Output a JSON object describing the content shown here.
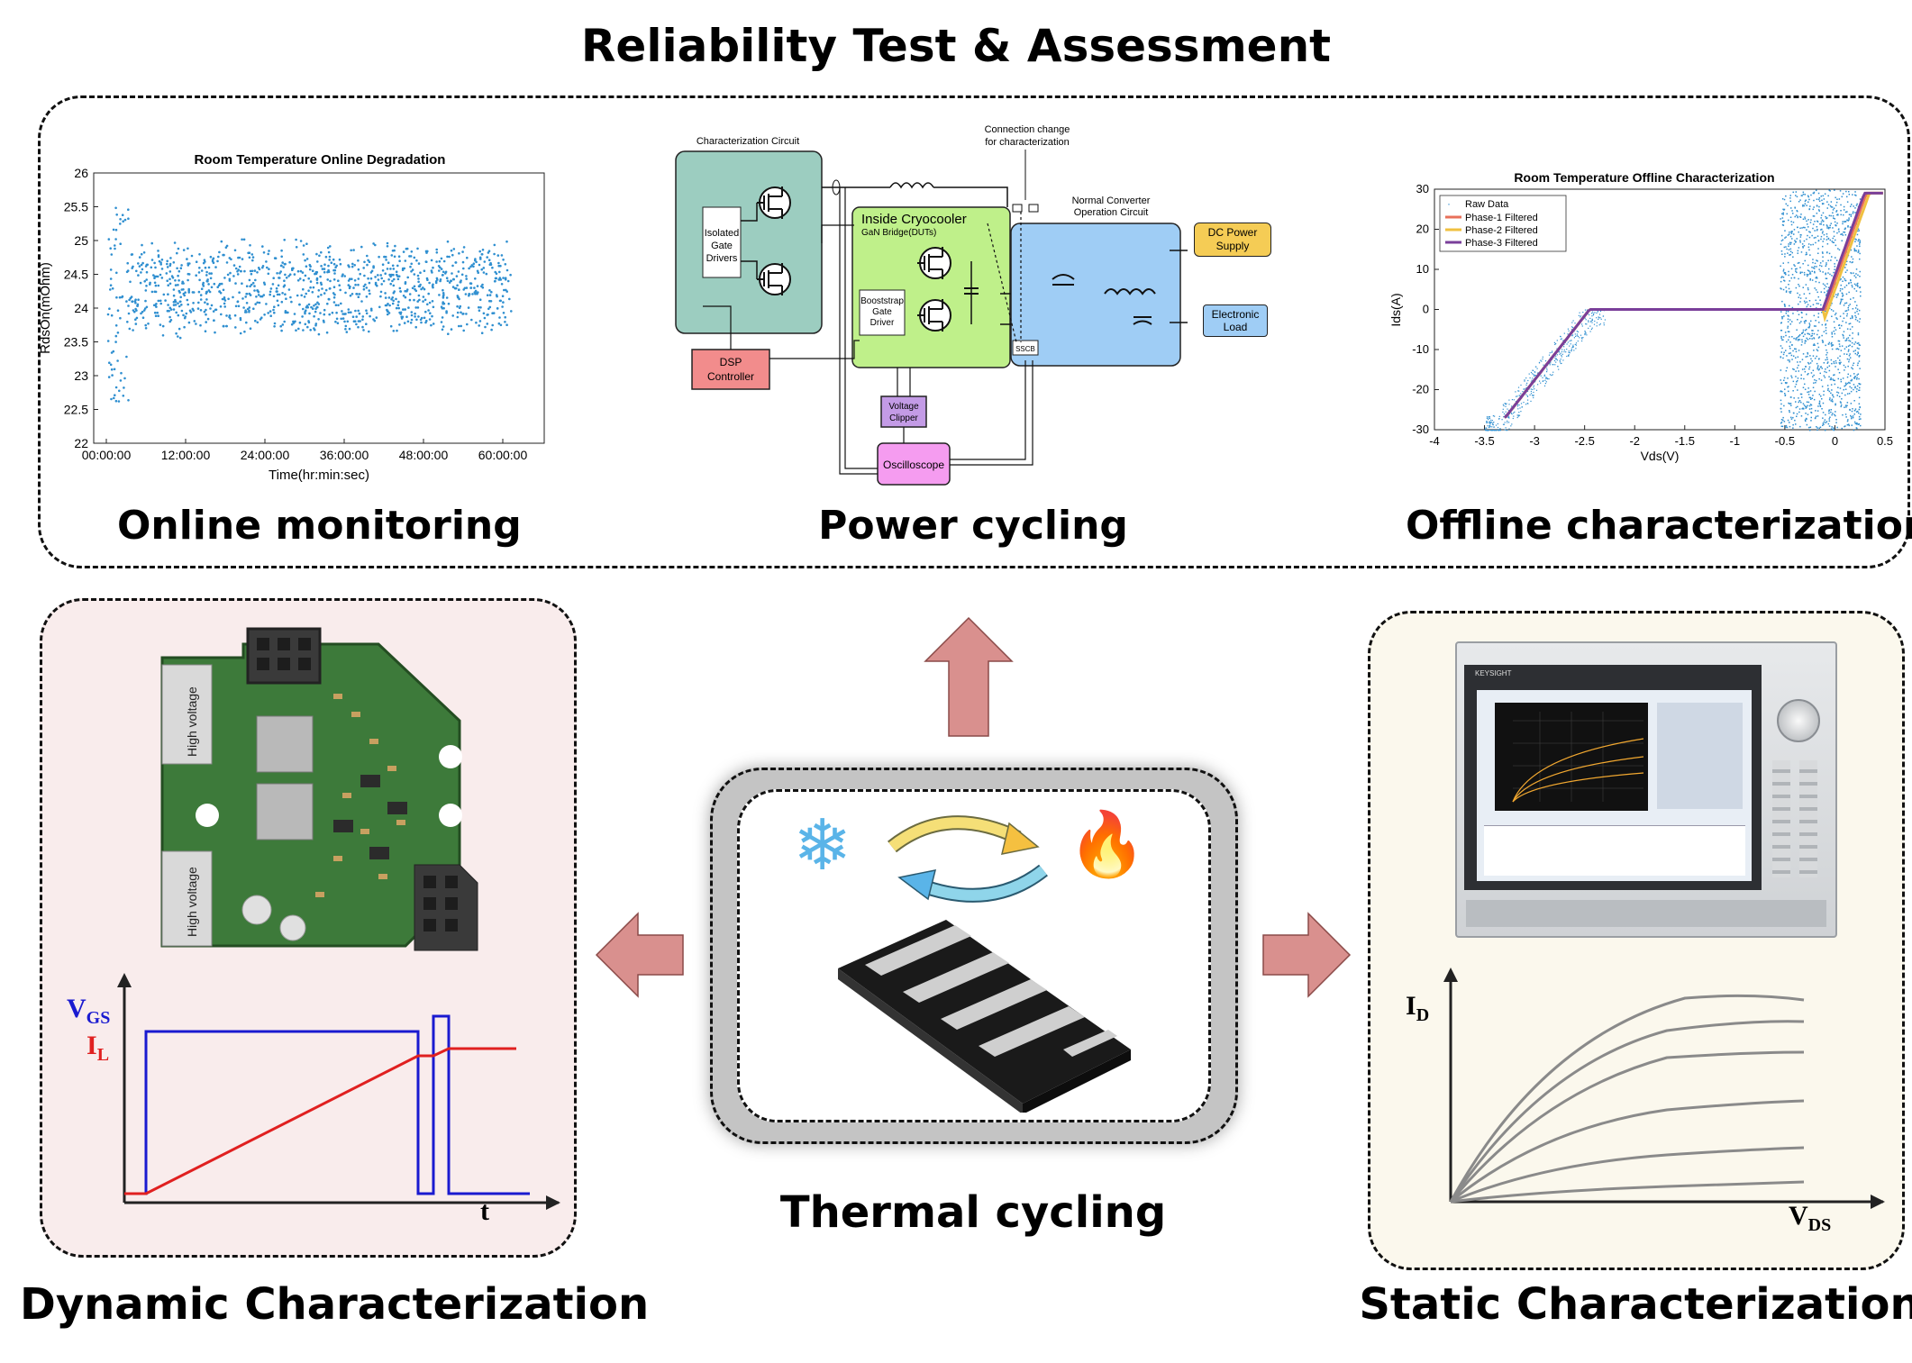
{
  "title": "Reliability Test & Assessment",
  "panels": {
    "online": {
      "label": "Online monitoring",
      "chart_title": "Room Temperature Online Degradation",
      "xlabel": "Time(hr:min:sec)",
      "ylabel": "RdsOn(mOhm)",
      "xticks": [
        "00:00:00",
        "12:00:00",
        "24:00:00",
        "36:00:00",
        "48:00:00",
        "60:00:00"
      ],
      "yticks": [
        "22",
        "22.5",
        "23",
        "23.5",
        "24",
        "24.5",
        "25",
        "25.5",
        "26"
      ]
    },
    "power": {
      "label": "Power cycling",
      "texts": {
        "char_circuit": "Characterization Circuit",
        "connection_change_1": "Connection change",
        "connection_change_2": "for characterization",
        "normal_conv_1": "Normal Converter",
        "normal_conv_2": "Operation Circuit",
        "isolated_1": "Isolated",
        "isolated_2": "Gate",
        "isolated_3": "Drivers",
        "inside_cryo": "Inside Cryocooler",
        "gan_bridge": "GaN Bridge(DUTs)",
        "bootstrap_1": "Booststrap",
        "bootstrap_2": "Gate",
        "bootstrap_3": "Driver",
        "dsp_1": "DSP",
        "dsp_2": "Controller",
        "dc_1": "DC Power",
        "dc_2": "Supply",
        "eload_1": "Electronic",
        "eload_2": "Load",
        "sscb": "SSCB",
        "clipper_1": "Voltage",
        "clipper_2": "Clipper",
        "scope": "Oscilloscope"
      }
    },
    "offline": {
      "label": "Offline characterization",
      "chart_title": "Room Temperature Offline Characterization",
      "xlabel": "Vds(V)",
      "ylabel": "Ids(A)",
      "xticks": [
        "-4",
        "-3.5",
        "-3",
        "-2.5",
        "-2",
        "-1.5",
        "-1",
        "-0.5",
        "0",
        "0.5"
      ],
      "yticks": [
        "30",
        "20",
        "10",
        "0",
        "-10",
        "-20",
        "-30"
      ],
      "legend": [
        "Raw Data",
        "Phase-1 Filtered",
        "Phase-2 Filtered",
        "Phase-3 Filtered"
      ]
    },
    "dynamic": {
      "label": "Dynamic Characterization",
      "vgs_main": "V",
      "vgs_sub": "GS",
      "il_main": "I",
      "il_sub": "L",
      "t_label": "t",
      "pcb_text_1": "High voltage",
      "pcb_text_2": "High voltage"
    },
    "thermal": {
      "label": "Thermal cycling",
      "cold_glyph": "❄",
      "hot_glyph": "🔥"
    },
    "static": {
      "label": "Static Characterization",
      "id_main": "I",
      "id_sub": "D",
      "vds_main": "V",
      "vds_sub": "DS",
      "brand": "KEYSIGHT"
    }
  },
  "colors": {
    "arrow": "#d9908e",
    "scatter": "#2f8fd0",
    "phase1": "#e8705a",
    "phase2": "#f0c040",
    "phase3": "#7a3f9a",
    "vgs": "#1a1ad0",
    "il": "#e02020",
    "char_box": "#9ccdc0",
    "cryo_box": "#bff08a",
    "normal_box": "#9fcdf5",
    "dsp_box": "#f28c8c",
    "dc_box": "#f5cc55",
    "clipper_box": "#c39be6",
    "scope_box": "#f59cf0"
  }
}
